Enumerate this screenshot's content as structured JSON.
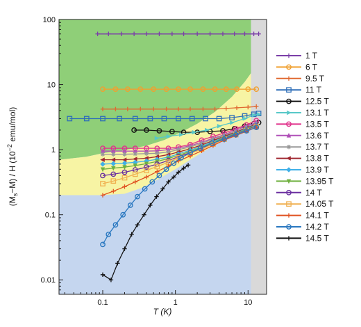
{
  "chart_data": {
    "type": "scatter",
    "xlabel": "T (K)",
    "ylabel": "(M_s−M) / H (10^−2 emu/mol)",
    "x_scale": "log",
    "y_scale": "log",
    "xlim": [
      0.025,
      18
    ],
    "ylim": [
      0.006,
      100
    ],
    "x_ticks": [
      {
        "value": 0.1,
        "label": "0.1"
      },
      {
        "value": 1,
        "label": "1"
      },
      {
        "value": 10,
        "label": "10"
      }
    ],
    "y_ticks": [
      {
        "value": 0.01,
        "label": "0.01"
      },
      {
        "value": 0.1,
        "label": "0.1"
      },
      {
        "value": 1,
        "label": "1"
      },
      {
        "value": 10,
        "label": "10"
      },
      {
        "value": 100,
        "label": "100"
      }
    ],
    "legend_position": "right",
    "background_regions": [
      {
        "name": "region-blue",
        "color": "#c5d6ef"
      },
      {
        "name": "region-yellow",
        "color": "#f7f4a4"
      },
      {
        "name": "region-green",
        "color": "#8fcf78"
      },
      {
        "name": "region-gray",
        "color": "#d9d9d9"
      }
    ],
    "series": [
      {
        "name": "1 T",
        "color": "#7b3fa8",
        "marker": "plus",
        "points": [
          [
            0.085,
            60
          ],
          [
            0.12,
            60
          ],
          [
            0.18,
            60
          ],
          [
            0.27,
            60
          ],
          [
            0.4,
            60
          ],
          [
            0.6,
            60
          ],
          [
            0.9,
            60
          ],
          [
            1.3,
            60
          ],
          [
            2,
            60
          ],
          [
            3,
            60
          ],
          [
            4.5,
            60
          ],
          [
            6.5,
            60
          ],
          [
            9,
            60
          ],
          [
            12,
            60
          ],
          [
            14,
            60
          ]
        ]
      },
      {
        "name": "6 T",
        "color": "#f0a030",
        "marker": "circle",
        "points": [
          [
            0.1,
            8.5
          ],
          [
            0.15,
            8.5
          ],
          [
            0.22,
            8.5
          ],
          [
            0.33,
            8.5
          ],
          [
            0.5,
            8.5
          ],
          [
            0.75,
            8.5
          ],
          [
            1.1,
            8.5
          ],
          [
            1.6,
            8.5
          ],
          [
            2.4,
            8.5
          ],
          [
            3.5,
            8.5
          ],
          [
            5,
            8.5
          ],
          [
            7,
            8.5
          ],
          [
            10,
            8.5
          ],
          [
            13,
            8.5
          ]
        ]
      },
      {
        "name": "9.5 T",
        "color": "#e06830",
        "marker": "plus",
        "points": [
          [
            0.1,
            4.2
          ],
          [
            0.15,
            4.2
          ],
          [
            0.22,
            4.2
          ],
          [
            0.33,
            4.2
          ],
          [
            0.5,
            4.2
          ],
          [
            0.75,
            4.2
          ],
          [
            1.1,
            4.2
          ],
          [
            1.6,
            4.2
          ],
          [
            2.4,
            4.2
          ],
          [
            3.5,
            4.2
          ],
          [
            5,
            4.3
          ],
          [
            7,
            4.4
          ],
          [
            10,
            4.5
          ],
          [
            13,
            4.6
          ]
        ]
      },
      {
        "name": "11 T",
        "color": "#2f6fb8",
        "marker": "square",
        "points": [
          [
            0.035,
            3
          ],
          [
            0.06,
            3
          ],
          [
            0.1,
            3
          ],
          [
            0.17,
            3
          ],
          [
            0.28,
            3
          ],
          [
            0.45,
            3
          ],
          [
            0.7,
            3
          ],
          [
            1.1,
            3
          ],
          [
            1.7,
            3
          ],
          [
            2.6,
            3
          ],
          [
            4,
            3
          ],
          [
            6,
            3.1
          ],
          [
            9,
            3.3
          ],
          [
            12,
            3.5
          ],
          [
            14,
            3.6
          ]
        ]
      },
      {
        "name": "12.5 T",
        "color": "#111111",
        "marker": "circle",
        "points": [
          [
            0.27,
            2
          ],
          [
            0.4,
            2
          ],
          [
            0.6,
            1.95
          ],
          [
            0.9,
            1.9
          ],
          [
            1.3,
            1.85
          ],
          [
            2,
            1.85
          ],
          [
            3,
            1.9
          ],
          [
            4.5,
            1.95
          ],
          [
            6.5,
            2.1
          ],
          [
            9,
            2.3
          ],
          [
            12,
            2.5
          ],
          [
            14,
            2.6
          ]
        ]
      },
      {
        "name": "13.1 T",
        "color": "#58c8c8",
        "marker": "tri-right",
        "points": [
          [
            0.55,
            1.5
          ],
          [
            0.8,
            1.6
          ],
          [
            1.2,
            1.7
          ],
          [
            1.8,
            1.85
          ],
          [
            2.7,
            2
          ],
          [
            4,
            2.3
          ],
          [
            6,
            2.6
          ],
          [
            9,
            3
          ],
          [
            12,
            3.4
          ],
          [
            14,
            3.5
          ]
        ]
      },
      {
        "name": "13.5 T",
        "color": "#e0308a",
        "marker": "circle",
        "points": [
          [
            0.1,
            1.05
          ],
          [
            0.14,
            1.05
          ],
          [
            0.2,
            1.05
          ],
          [
            0.28,
            1.05
          ],
          [
            0.4,
            1.05
          ],
          [
            0.56,
            1.05
          ],
          [
            0.8,
            1.05
          ],
          [
            1.1,
            1.1
          ],
          [
            1.6,
            1.2
          ],
          [
            2.3,
            1.4
          ],
          [
            3.3,
            1.6
          ],
          [
            4.7,
            1.8
          ],
          [
            6.8,
            2.1
          ],
          [
            9.5,
            2.4
          ],
          [
            13,
            2.8
          ]
        ]
      },
      {
        "name": "13.6 T",
        "color": "#b050b8",
        "marker": "triangle",
        "points": [
          [
            0.1,
            0.95
          ],
          [
            0.14,
            0.95
          ],
          [
            0.2,
            0.95
          ],
          [
            0.28,
            0.95
          ],
          [
            0.4,
            0.95
          ],
          [
            0.56,
            0.96
          ],
          [
            0.8,
            1
          ],
          [
            1.1,
            1.05
          ],
          [
            1.6,
            1.15
          ],
          [
            2.3,
            1.3
          ],
          [
            3.3,
            1.5
          ],
          [
            4.7,
            1.7
          ],
          [
            6.8,
            2
          ],
          [
            9.5,
            2.3
          ],
          [
            13,
            2.6
          ]
        ]
      },
      {
        "name": "13.7 T",
        "color": "#999999",
        "marker": "star",
        "points": [
          [
            0.1,
            0.85
          ],
          [
            0.14,
            0.85
          ],
          [
            0.2,
            0.85
          ],
          [
            0.28,
            0.86
          ],
          [
            0.4,
            0.87
          ],
          [
            0.56,
            0.88
          ],
          [
            0.8,
            0.92
          ],
          [
            1.1,
            1
          ],
          [
            1.6,
            1.1
          ],
          [
            2.3,
            1.25
          ],
          [
            3.3,
            1.45
          ],
          [
            4.7,
            1.65
          ],
          [
            6.8,
            1.9
          ],
          [
            9.5,
            2.2
          ],
          [
            13,
            2.5
          ]
        ]
      },
      {
        "name": "13.8 T",
        "color": "#a02830",
        "marker": "tri-left",
        "points": [
          [
            0.1,
            0.7
          ],
          [
            0.14,
            0.7
          ],
          [
            0.2,
            0.7
          ],
          [
            0.28,
            0.72
          ],
          [
            0.4,
            0.74
          ],
          [
            0.56,
            0.78
          ],
          [
            0.8,
            0.84
          ],
          [
            1.1,
            0.92
          ],
          [
            1.6,
            1.03
          ],
          [
            2.3,
            1.18
          ],
          [
            3.3,
            1.38
          ],
          [
            4.7,
            1.6
          ],
          [
            6.8,
            1.85
          ],
          [
            9.5,
            2.15
          ],
          [
            13,
            2.45
          ]
        ]
      },
      {
        "name": "13.9 T",
        "color": "#40b0e8",
        "marker": "diamond",
        "points": [
          [
            0.1,
            0.6
          ],
          [
            0.14,
            0.61
          ],
          [
            0.2,
            0.62
          ],
          [
            0.28,
            0.64
          ],
          [
            0.4,
            0.67
          ],
          [
            0.56,
            0.71
          ],
          [
            0.8,
            0.77
          ],
          [
            1.1,
            0.86
          ],
          [
            1.6,
            0.98
          ],
          [
            2.3,
            1.13
          ],
          [
            3.3,
            1.33
          ],
          [
            4.7,
            1.55
          ],
          [
            6.8,
            1.8
          ],
          [
            9.5,
            2.1
          ],
          [
            13,
            2.4
          ]
        ]
      },
      {
        "name": "13.95 T",
        "color": "#70b040",
        "marker": "tri-down",
        "points": [
          [
            0.1,
            0.5
          ],
          [
            0.14,
            0.52
          ],
          [
            0.2,
            0.54
          ],
          [
            0.28,
            0.57
          ],
          [
            0.4,
            0.61
          ],
          [
            0.56,
            0.66
          ],
          [
            0.8,
            0.73
          ],
          [
            1.1,
            0.82
          ],
          [
            1.6,
            0.94
          ],
          [
            2.3,
            1.09
          ],
          [
            3.3,
            1.29
          ],
          [
            4.7,
            1.52
          ],
          [
            6.8,
            1.77
          ],
          [
            9.5,
            2.05
          ],
          [
            13,
            2.35
          ]
        ]
      },
      {
        "name": "14 T",
        "color": "#6a2fa0",
        "marker": "circle",
        "points": [
          [
            0.1,
            0.4
          ],
          [
            0.14,
            0.42
          ],
          [
            0.2,
            0.45
          ],
          [
            0.28,
            0.49
          ],
          [
            0.4,
            0.54
          ],
          [
            0.56,
            0.6
          ],
          [
            0.8,
            0.68
          ],
          [
            1.1,
            0.78
          ],
          [
            1.6,
            0.9
          ],
          [
            2.3,
            1.05
          ],
          [
            3.3,
            1.25
          ],
          [
            4.7,
            1.48
          ],
          [
            6.8,
            1.73
          ],
          [
            9.5,
            2
          ],
          [
            13,
            2.3
          ]
        ]
      },
      {
        "name": "14.05 T",
        "color": "#f0b050",
        "marker": "square",
        "points": [
          [
            0.1,
            0.3
          ],
          [
            0.14,
            0.33
          ],
          [
            0.2,
            0.37
          ],
          [
            0.28,
            0.42
          ],
          [
            0.4,
            0.48
          ],
          [
            0.56,
            0.55
          ],
          [
            0.8,
            0.64
          ],
          [
            1.1,
            0.75
          ],
          [
            1.6,
            0.87
          ],
          [
            2.3,
            1.02
          ],
          [
            3.3,
            1.22
          ],
          [
            4.7,
            1.45
          ],
          [
            6.8,
            1.7
          ],
          [
            9.5,
            1.97
          ],
          [
            13,
            2.25
          ]
        ]
      },
      {
        "name": "14.1 T",
        "color": "#e05020",
        "marker": "plus",
        "points": [
          [
            0.1,
            0.2
          ],
          [
            0.14,
            0.23
          ],
          [
            0.2,
            0.27
          ],
          [
            0.28,
            0.32
          ],
          [
            0.4,
            0.38
          ],
          [
            0.56,
            0.46
          ],
          [
            0.8,
            0.56
          ],
          [
            1.1,
            0.67
          ],
          [
            1.6,
            0.8
          ],
          [
            2.3,
            0.96
          ],
          [
            3.3,
            1.16
          ],
          [
            4.7,
            1.4
          ],
          [
            6.8,
            1.65
          ],
          [
            9.5,
            1.92
          ],
          [
            13,
            2.2
          ]
        ]
      },
      {
        "name": "14.2 T",
        "color": "#2a78c0",
        "marker": "circle",
        "points": [
          [
            0.1,
            0.035
          ],
          [
            0.12,
            0.05
          ],
          [
            0.15,
            0.07
          ],
          [
            0.19,
            0.1
          ],
          [
            0.24,
            0.14
          ],
          [
            0.3,
            0.19
          ],
          [
            0.38,
            0.25
          ],
          [
            0.48,
            0.32
          ],
          [
            0.6,
            0.4
          ],
          [
            0.75,
            0.5
          ],
          [
            0.95,
            0.62
          ],
          [
            1.2,
            0.75
          ],
          [
            1.6,
            0.9
          ],
          [
            2.2,
            1.05
          ],
          [
            3.2,
            1.25
          ],
          [
            4.7,
            1.45
          ],
          [
            6.8,
            1.7
          ],
          [
            9.5,
            1.95
          ],
          [
            13,
            2.2
          ]
        ]
      },
      {
        "name": "14.5 T",
        "color": "#111111",
        "marker": "plus",
        "points": [
          [
            0.1,
            0.012
          ],
          [
            0.13,
            0.01
          ],
          [
            0.16,
            0.018
          ],
          [
            0.2,
            0.03
          ],
          [
            0.25,
            0.05
          ],
          [
            0.3,
            0.07
          ],
          [
            0.37,
            0.1
          ],
          [
            0.45,
            0.14
          ],
          [
            0.55,
            0.19
          ],
          [
            0.67,
            0.25
          ],
          [
            0.8,
            0.32
          ],
          [
            0.95,
            0.38
          ],
          [
            1.1,
            0.45
          ],
          [
            1.3,
            0.52
          ],
          [
            1.5,
            0.58
          ]
        ]
      }
    ]
  }
}
